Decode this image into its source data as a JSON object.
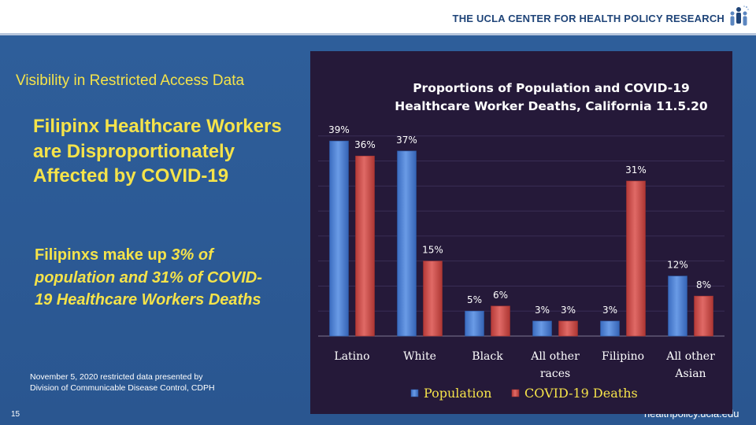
{
  "header": {
    "org_name": "THE UCLA CENTER FOR HEALTH POLICY RESEARCH",
    "logo_icon": "people-group-icon"
  },
  "slide": {
    "subtitle": "Visibility in Restricted Access Data",
    "headline": "Filipinx Healthcare Workers are Disproportionately Affected by COVID-19",
    "stat_lead": "Filipinxs make up ",
    "stat_emphasis": "3% of population and 31% of COVID-19 Healthcare Workers Deaths",
    "source_line1": "November 5, 2020 restricted data presented by",
    "source_line2": "Division of Communicable Disease Control, CDPH",
    "slide_number": "15",
    "url": "healthpolicy.ucla.edu"
  },
  "colors": {
    "accent_yellow": "#f5e34a",
    "population_blue": "#4a80d4",
    "deaths_red": "#cf4a47",
    "chart_bg": "#251939"
  },
  "chart_data": {
    "type": "bar",
    "title_line1": "Proportions of Population and COVID-19",
    "title_line2": "Healthcare Worker Deaths, California 11.5.20",
    "categories": [
      [
        "Latino"
      ],
      [
        "White"
      ],
      [
        "Black"
      ],
      [
        "All other",
        "races"
      ],
      [
        "Filipino"
      ],
      [
        "All other",
        "Asian"
      ]
    ],
    "series": [
      {
        "name": "Population",
        "values": [
          39,
          37,
          5,
          3,
          3,
          12
        ],
        "labels": [
          "39%",
          "37%",
          "5%",
          "3%",
          "3%",
          "12%"
        ]
      },
      {
        "name": "COVID-19 Deaths",
        "values": [
          36,
          15,
          6,
          3,
          31,
          8
        ],
        "labels": [
          "36%",
          "15%",
          "6%",
          "3%",
          "31%",
          "8%"
        ]
      }
    ],
    "ylim": [
      0,
      45
    ],
    "grid": true,
    "legend": "bottom"
  }
}
